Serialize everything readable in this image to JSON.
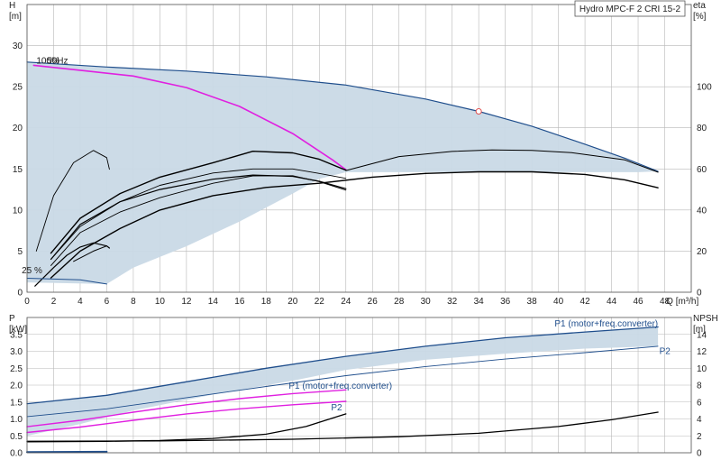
{
  "title": "Hydro MPC-F 2 CRI 15-2",
  "colors": {
    "envelope": "#c9d9e6",
    "blue_curve": "#1f4e8c",
    "magenta": "#e020e0",
    "black": "#000000",
    "grid": "#b8b8b8"
  },
  "chart_data": [
    {
      "type": "line",
      "name": "head-eta",
      "xlabel": "Q [m³/h]",
      "ylabel_left": "H",
      "ylabel_left_unit": "[m]",
      "ylabel_right": "eta",
      "ylabel_right_unit": "[%]",
      "xlim": [
        0,
        50
      ],
      "ylim_left": [
        0,
        35
      ],
      "ylim_right": [
        0,
        140
      ],
      "x_ticks": [
        0,
        2,
        4,
        6,
        8,
        10,
        12,
        14,
        16,
        18,
        20,
        22,
        24,
        26,
        28,
        30,
        32,
        34,
        36,
        38,
        40,
        42,
        44,
        46,
        48
      ],
      "y_ticks_left": [
        0,
        5,
        10,
        15,
        20,
        25,
        30
      ],
      "y_ticks_right": [
        0,
        20,
        40,
        60,
        80,
        100
      ],
      "annotations": [
        "100%",
        "50Hz",
        "25 %"
      ],
      "envelope_upper": [
        [
          0,
          28.0
        ],
        [
          6,
          27.4
        ],
        [
          12,
          26.9
        ],
        [
          18,
          26.2
        ],
        [
          24,
          25.2
        ],
        [
          30,
          23.5
        ],
        [
          34,
          22.0
        ],
        [
          38,
          20.2
        ],
        [
          42,
          18.0
        ],
        [
          45,
          16.3
        ],
        [
          47.5,
          14.7
        ]
      ],
      "envelope_lower": [
        [
          47.5,
          14.7
        ],
        [
          46,
          14.6
        ],
        [
          24,
          14.6
        ],
        [
          22,
          13.8
        ],
        [
          20,
          12.0
        ],
        [
          16,
          8.6
        ],
        [
          12,
          5.6
        ],
        [
          8,
          3.0
        ],
        [
          6,
          1.0
        ],
        [
          0,
          1.2
        ],
        [
          0,
          28.0
        ]
      ],
      "duty_point": [
        34,
        22.0
      ],
      "series": [
        {
          "color": "magenta",
          "width": 1.6,
          "axis": "left",
          "points": [
            [
              0.5,
              27.6
            ],
            [
              4,
              27.0
            ],
            [
              8,
              26.3
            ],
            [
              12,
              24.9
            ],
            [
              16,
              22.6
            ],
            [
              20,
              19.3
            ],
            [
              23,
              16.1
            ],
            [
              24,
              14.9
            ]
          ]
        },
        {
          "color": "blue",
          "width": 1.2,
          "axis": "left",
          "points": [
            [
              0,
              28.0
            ],
            [
              6,
              27.4
            ],
            [
              12,
              26.9
            ],
            [
              18,
              26.2
            ],
            [
              24,
              25.2
            ],
            [
              30,
              23.5
            ],
            [
              34,
              22.0
            ],
            [
              38,
              20.2
            ],
            [
              42,
              18.0
            ],
            [
              45,
              16.3
            ],
            [
              47.5,
              14.7
            ]
          ]
        },
        {
          "color": "black",
          "width": 1.4,
          "axis": "right",
          "points": [
            [
              1.8,
              7
            ],
            [
              4,
              20
            ],
            [
              7,
              31
            ],
            [
              10,
              40
            ],
            [
              14,
              47
            ],
            [
              18,
              51
            ],
            [
              22,
              53
            ],
            [
              26,
              56
            ],
            [
              30,
              57.8
            ],
            [
              34,
              58.6
            ],
            [
              38,
              58.6
            ],
            [
              42,
              57.3
            ],
            [
              45,
              54.7
            ],
            [
              47.5,
              50.8
            ]
          ]
        },
        {
          "color": "black",
          "width": 1.0,
          "axis": "right",
          "points": [
            [
              24,
              59.2
            ],
            [
              28,
              66
            ],
            [
              32,
              68.5
            ],
            [
              35,
              69.2
            ],
            [
              38,
              69
            ],
            [
              41,
              67.9
            ],
            [
              45,
              64.4
            ],
            [
              47.5,
              58.4
            ]
          ]
        },
        {
          "color": "black",
          "width": 1.4,
          "axis": "right",
          "points": [
            [
              1.8,
              19
            ],
            [
              4,
              36
            ],
            [
              7,
              48
            ],
            [
              10,
              56
            ],
            [
              14,
              63
            ],
            [
              17,
              68.6
            ],
            [
              20,
              67.8
            ],
            [
              22,
              64.7
            ],
            [
              24,
              59.4
            ]
          ]
        },
        {
          "color": "black",
          "width": 0.9,
          "axis": "right",
          "points": [
            [
              1.8,
              13
            ],
            [
              4,
              29
            ],
            [
              7,
              39
            ],
            [
              10,
              46
            ],
            [
              14,
              53
            ],
            [
              17,
              56.6
            ],
            [
              20,
              56.7
            ],
            [
              22,
              53.8
            ],
            [
              24,
              49.7
            ]
          ]
        },
        {
          "color": "black",
          "width": 0.9,
          "axis": "right",
          "points": [
            [
              1.8,
              16
            ],
            [
              4,
              32
            ],
            [
              7,
              44
            ],
            [
              10,
              52
            ],
            [
              14,
              58
            ],
            [
              17,
              60
            ],
            [
              20,
              60
            ],
            [
              22,
              57.8
            ],
            [
              24,
              55.4
            ]
          ]
        },
        {
          "color": "black",
          "width": 1.2,
          "axis": "right",
          "points": [
            [
              1.8,
              16
            ],
            [
              4,
              33
            ],
            [
              7,
              44
            ],
            [
              10,
              50
            ],
            [
              14,
              55
            ],
            [
              17,
              57
            ],
            [
              20,
              56.4
            ],
            [
              22,
              54
            ],
            [
              24,
              50.4
            ]
          ]
        },
        {
          "color": "black",
          "width": 0.9,
          "axis": "right",
          "points": [
            [
              0.7,
              20
            ],
            [
              2,
              47
            ],
            [
              3.5,
              63
            ],
            [
              5,
              69
            ],
            [
              6,
              65.5
            ],
            [
              6.2,
              59.8
            ]
          ]
        },
        {
          "color": "black",
          "width": 1.2,
          "axis": "right",
          "points": [
            [
              0.6,
              3
            ],
            [
              2,
              12
            ],
            [
              3,
              18
            ],
            [
              4,
              22
            ],
            [
              5,
              24
            ],
            [
              6,
              22.5
            ],
            [
              6.2,
              21.5
            ]
          ]
        },
        {
          "color": "black",
          "width": 1.0,
          "axis": "right",
          "points": [
            [
              3.5,
              15
            ],
            [
              5,
              20
            ],
            [
              6,
              22.5
            ]
          ]
        },
        {
          "color": "blue",
          "width": 1.0,
          "axis": "left",
          "points": [
            [
              0,
              1.7
            ],
            [
              4,
              1.5
            ],
            [
              6,
              1.0
            ]
          ]
        }
      ]
    },
    {
      "type": "line",
      "name": "power-npsh",
      "ylabel_left": "P",
      "ylabel_left_unit": "[kW]",
      "ylabel_right": "NPSH",
      "ylabel_right_unit": "[m]",
      "xlim": [
        0,
        50
      ],
      "ylim_left": [
        0,
        4.0
      ],
      "ylim_right": [
        0,
        16
      ],
      "y_ticks_left": [
        0.0,
        0.5,
        1.0,
        1.5,
        2.0,
        2.5,
        3.0,
        3.5
      ],
      "y_ticks_right": [
        0,
        2,
        4,
        6,
        8,
        10,
        12,
        14
      ],
      "annotations": [
        "P1 (motor+freq.converter)",
        "P2",
        "P1 (motor+freq.converter)",
        "P2"
      ],
      "envelope_upper": [
        [
          0,
          1.45
        ],
        [
          6,
          1.7
        ],
        [
          12,
          2.1
        ],
        [
          18,
          2.5
        ],
        [
          24,
          2.85
        ],
        [
          30,
          3.15
        ],
        [
          36,
          3.4
        ],
        [
          42,
          3.57
        ],
        [
          47.5,
          3.72
        ]
      ],
      "envelope_lower": [
        [
          47.5,
          3.15
        ],
        [
          42,
          3.08
        ],
        [
          36,
          2.93
        ],
        [
          30,
          2.75
        ],
        [
          24,
          2.45
        ],
        [
          20,
          2.13
        ],
        [
          14,
          1.72
        ],
        [
          8,
          1.25
        ],
        [
          4,
          0.85
        ],
        [
          0,
          0.5
        ]
      ],
      "series": [
        {
          "color": "blue",
          "width": 1.3,
          "axis": "left",
          "points": [
            [
              0,
              1.45
            ],
            [
              6,
              1.7
            ],
            [
              12,
              2.1
            ],
            [
              18,
              2.5
            ],
            [
              24,
              2.85
            ],
            [
              30,
              3.15
            ],
            [
              36,
              3.4
            ],
            [
              42,
              3.57
            ],
            [
              47.5,
              3.72
            ]
          ]
        },
        {
          "color": "blue",
          "width": 0.9,
          "axis": "left",
          "points": [
            [
              0,
              1.07
            ],
            [
              6,
              1.3
            ],
            [
              12,
              1.63
            ],
            [
              18,
              1.96
            ],
            [
              24,
              2.28
            ],
            [
              30,
              2.55
            ],
            [
              36,
              2.77
            ],
            [
              42,
              2.96
            ],
            [
              47.5,
              3.15
            ]
          ]
        },
        {
          "color": "magenta",
          "width": 1.4,
          "axis": "left",
          "points": [
            [
              0,
              0.77
            ],
            [
              4,
              0.96
            ],
            [
              8,
              1.2
            ],
            [
              12,
              1.42
            ],
            [
              16,
              1.6
            ],
            [
              20,
              1.75
            ],
            [
              24,
              1.86
            ]
          ]
        },
        {
          "color": "magenta",
          "width": 1.4,
          "axis": "left",
          "points": [
            [
              0,
              0.6
            ],
            [
              4,
              0.76
            ],
            [
              8,
              0.96
            ],
            [
              12,
              1.15
            ],
            [
              16,
              1.3
            ],
            [
              20,
              1.42
            ],
            [
              24,
              1.52
            ]
          ]
        },
        {
          "color": "black",
          "width": 1.3,
          "axis": "right",
          "points": [
            [
              0,
              1.3
            ],
            [
              6,
              1.35
            ],
            [
              10,
              1.45
            ],
            [
              14,
              1.7
            ],
            [
              18,
              2.2
            ],
            [
              21,
              3.1
            ],
            [
              24,
              4.6
            ]
          ]
        },
        {
          "color": "black",
          "width": 1.3,
          "axis": "right",
          "points": [
            [
              0,
              1.35
            ],
            [
              10,
              1.4
            ],
            [
              20,
              1.6
            ],
            [
              28,
              1.9
            ],
            [
              34,
              2.3
            ],
            [
              40,
              3.1
            ],
            [
              44,
              3.9
            ],
            [
              47.5,
              4.8
            ]
          ]
        },
        {
          "color": "blue",
          "width": 2.0,
          "axis": "left",
          "points": [
            [
              0,
              0.02
            ],
            [
              6,
              0.03
            ]
          ]
        }
      ]
    }
  ]
}
